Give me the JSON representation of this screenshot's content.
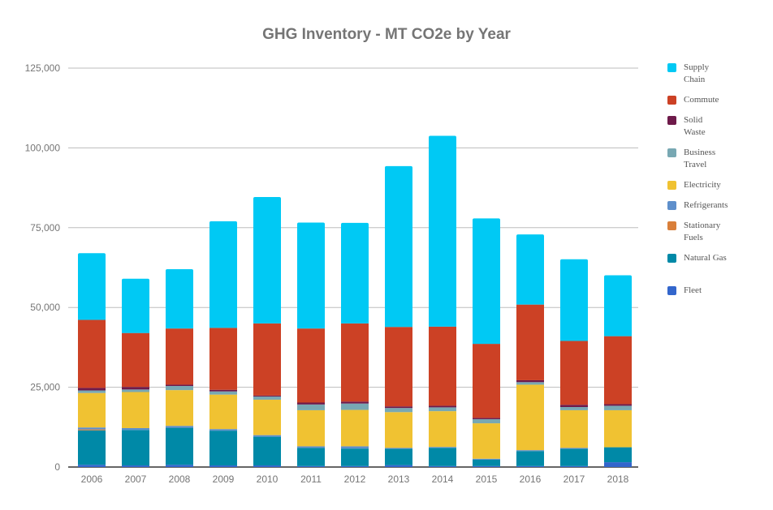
{
  "chart_data": {
    "type": "bar",
    "stacked": true,
    "title": "GHG Inventory - MT CO2e by Year",
    "xlabel": "",
    "ylabel": "",
    "ylim": [
      0,
      125000
    ],
    "yticks": [
      0,
      25000,
      50000,
      75000,
      100000,
      125000
    ],
    "ytick_labels": [
      "0",
      "25,000",
      "50,000",
      "75,000",
      "100,000",
      "125,000"
    ],
    "grid": true,
    "legend_position": "right",
    "categories": [
      "2006",
      "2007",
      "2008",
      "2009",
      "2010",
      "2011",
      "2012",
      "2013",
      "2014",
      "2015",
      "2016",
      "2017",
      "2018"
    ],
    "series": [
      {
        "name": "Fleet",
        "color": "#3366cc",
        "values": [
          700,
          500,
          700,
          500,
          500,
          300,
          300,
          600,
          300,
          300,
          300,
          300,
          1500
        ]
      },
      {
        "name": "Natural Gas",
        "color": "#0089a7",
        "values": [
          10800,
          11100,
          11600,
          10900,
          9000,
          5700,
          5500,
          5100,
          5700,
          2000,
          4700,
          5400,
          4700
        ]
      },
      {
        "name": "Stationary Fuels",
        "color": "#d97f3a",
        "values": [
          300,
          0,
          0,
          0,
          0,
          0,
          0,
          0,
          0,
          0,
          0,
          0,
          0
        ]
      },
      {
        "name": "Refrigerants",
        "color": "#5e8fcb",
        "values": [
          600,
          600,
          600,
          500,
          500,
          500,
          700,
          300,
          300,
          300,
          300,
          300,
          0
        ]
      },
      {
        "name": "Electricity",
        "color": "#f0c232",
        "values": [
          10800,
          11300,
          11200,
          10800,
          11100,
          11300,
          11400,
          11200,
          11200,
          11100,
          20500,
          11800,
          11600
        ]
      },
      {
        "name": "Business Travel",
        "color": "#78a8b3",
        "values": [
          800,
          800,
          1300,
          1000,
          1000,
          1800,
          2000,
          1300,
          1200,
          1300,
          800,
          1000,
          1400
        ]
      },
      {
        "name": "Solid Waste",
        "color": "#6e1a4a",
        "values": [
          800,
          800,
          400,
          500,
          300,
          600,
          600,
          500,
          500,
          400,
          600,
          700,
          500
        ]
      },
      {
        "name": "Commute",
        "color": "#cc4125",
        "values": [
          21300,
          16900,
          17600,
          19400,
          22600,
          23200,
          24500,
          24900,
          24800,
          23200,
          23700,
          20000,
          21300
        ]
      },
      {
        "name": "Supply Chain",
        "color": "#00c9f4",
        "values": [
          20900,
          17000,
          18600,
          33400,
          39600,
          33200,
          31500,
          50400,
          59800,
          39300,
          22000,
          25600,
          19100
        ]
      }
    ]
  },
  "legend": [
    {
      "label": "Supply\n  Chain",
      "color": "#00c9f4"
    },
    {
      "label": " Commute",
      "color": "#cc4125"
    },
    {
      "label": "Solid\nWaste",
      "color": "#6e1a4a"
    },
    {
      "label": "Business\n  Travel",
      "color": "#78a8b3"
    },
    {
      "label": "Electricity",
      "color": "#f0c232"
    },
    {
      "label": "Refrigerants",
      "color": "#5e8fcb"
    },
    {
      "label": " Stationary\nFuels",
      "color": "#d97f3a"
    },
    {
      "label": "Natural Gas",
      "color": "#0089a7"
    },
    {
      "label": "Fleet",
      "color": "#3366cc"
    }
  ]
}
